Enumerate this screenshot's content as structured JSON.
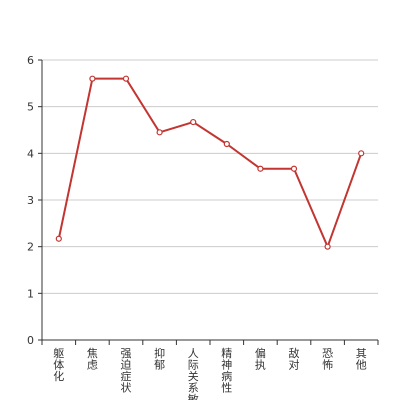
{
  "chart_data": {
    "type": "line",
    "title": "",
    "xlabel": "",
    "ylabel": "",
    "categories": [
      "躯体化",
      "焦虑",
      "强迫症状",
      "抑郁",
      "人际关系敏感",
      "精神病性",
      "偏执",
      "敌对",
      "恐怖",
      "其他"
    ],
    "series": [
      {
        "values": [
          2.17,
          5.6,
          5.6,
          4.45,
          4.67,
          4.2,
          3.67,
          3.67,
          2.0,
          4.0
        ]
      }
    ],
    "ylim": [
      0,
      6
    ],
    "yticks": [
      0,
      1,
      2,
      3,
      4,
      5,
      6
    ],
    "grid": true,
    "legend": "none"
  },
  "colors": {
    "line": "#c23531",
    "grid": "#cccccc",
    "axis": "#333333",
    "point_fill": "#ffffff"
  }
}
